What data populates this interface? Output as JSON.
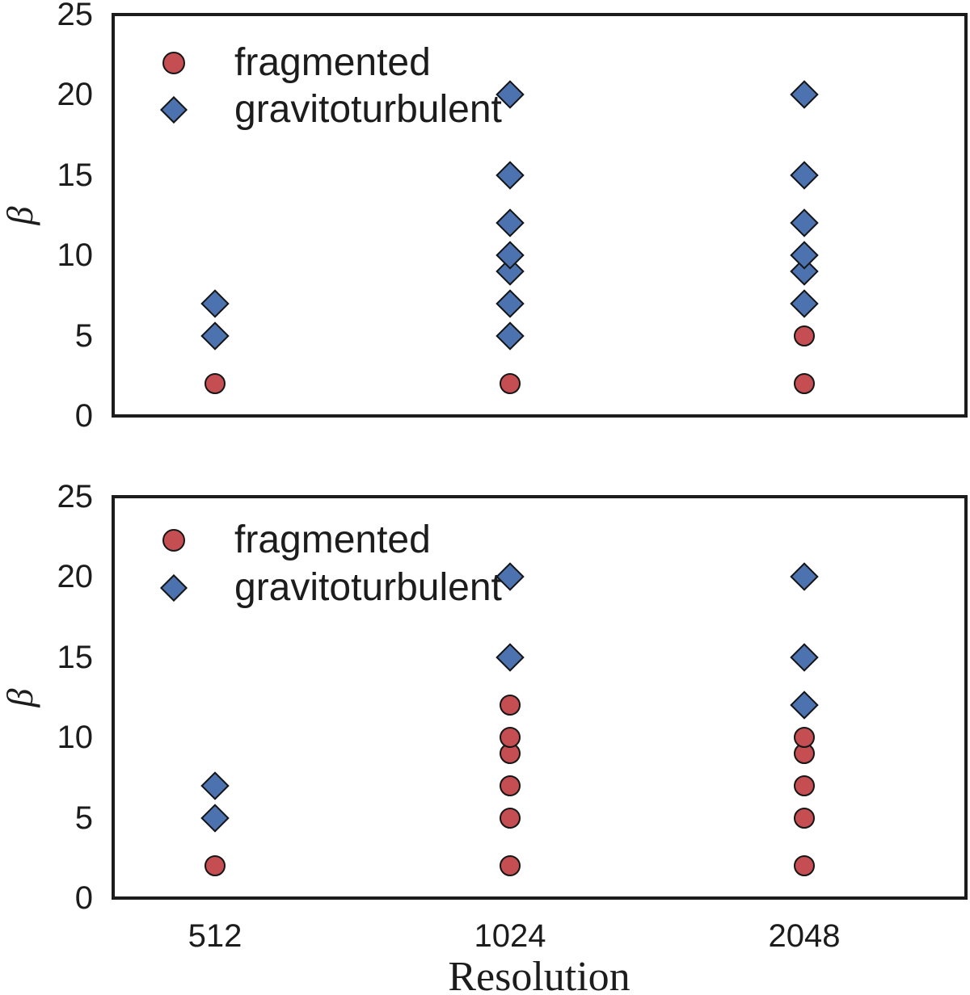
{
  "figure": {
    "xlabel": "Resolution",
    "ylabel": "β",
    "x_tick_labels": [
      "512",
      "1024",
      "2048"
    ],
    "y_tick_labels": [
      "0",
      "5",
      "10",
      "15",
      "20",
      "25"
    ],
    "legend": {
      "fragmented": "fragmented",
      "gravitoturbulent": "gravitoturbulent"
    },
    "colors": {
      "fragmented_fill": "#C44E52",
      "gravitoturbulent_fill": "#4C72B0",
      "marker_edge": "#161616",
      "frame": "#1c1c1c",
      "text": "#1c1c1c"
    }
  },
  "chart_data": [
    {
      "type": "scatter",
      "panel": "top",
      "xlabel": "Resolution",
      "ylabel": "β",
      "ylim": [
        0,
        25
      ],
      "y_ticks": [
        0,
        5,
        10,
        15,
        20,
        25
      ],
      "x_categories": [
        512,
        1024,
        2048
      ],
      "grid": false,
      "legend_position": "upper-left",
      "legend_entries": [
        "fragmented",
        "gravitoturbulent"
      ],
      "series": [
        {
          "name": "fragmented",
          "marker": "circle",
          "color": "#C44E52",
          "points": [
            [
              512,
              2
            ],
            [
              1024,
              2
            ],
            [
              2048,
              2
            ],
            [
              2048,
              5
            ]
          ]
        },
        {
          "name": "gravitoturbulent",
          "marker": "diamond",
          "color": "#4C72B0",
          "points": [
            [
              512,
              5
            ],
            [
              512,
              7
            ],
            [
              1024,
              5
            ],
            [
              1024,
              7
            ],
            [
              1024,
              9
            ],
            [
              1024,
              10
            ],
            [
              1024,
              12
            ],
            [
              1024,
              15
            ],
            [
              1024,
              20
            ],
            [
              2048,
              7
            ],
            [
              2048,
              9
            ],
            [
              2048,
              10
            ],
            [
              2048,
              12
            ],
            [
              2048,
              15
            ],
            [
              2048,
              20
            ]
          ]
        }
      ]
    },
    {
      "type": "scatter",
      "panel": "bottom",
      "xlabel": "Resolution",
      "ylabel": "β",
      "ylim": [
        0,
        25
      ],
      "y_ticks": [
        0,
        5,
        10,
        15,
        20,
        25
      ],
      "x_categories": [
        512,
        1024,
        2048
      ],
      "grid": false,
      "legend_position": "upper-left",
      "legend_entries": [
        "fragmented",
        "gravitoturbulent"
      ],
      "series": [
        {
          "name": "fragmented",
          "marker": "circle",
          "color": "#C44E52",
          "points": [
            [
              512,
              2
            ],
            [
              1024,
              2
            ],
            [
              1024,
              5
            ],
            [
              1024,
              7
            ],
            [
              1024,
              9
            ],
            [
              1024,
              10
            ],
            [
              1024,
              12
            ],
            [
              2048,
              2
            ],
            [
              2048,
              5
            ],
            [
              2048,
              7
            ],
            [
              2048,
              9
            ],
            [
              2048,
              10
            ]
          ]
        },
        {
          "name": "gravitoturbulent",
          "marker": "diamond",
          "color": "#4C72B0",
          "points": [
            [
              512,
              5
            ],
            [
              512,
              7
            ],
            [
              1024,
              15
            ],
            [
              1024,
              20
            ],
            [
              2048,
              12
            ],
            [
              2048,
              15
            ],
            [
              2048,
              20
            ]
          ]
        }
      ]
    }
  ]
}
